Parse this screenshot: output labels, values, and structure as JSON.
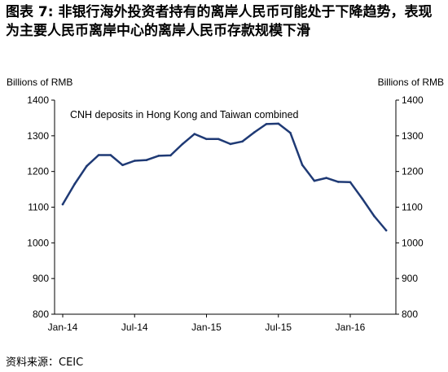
{
  "figure": {
    "title": "图表 7: 非银行海外投资者持有的离岸人民币可能处于下降趋势，表现为主要人民币离岸中心的离岸人民币存款规模下滑",
    "source": "资料来源：CEIC"
  },
  "chart_data": {
    "type": "line",
    "annotation": "CNH deposits in Hong Kong and Taiwan  combined",
    "ylabel_left": "Billions of RMB",
    "ylabel_right": "Billions of RMB",
    "ylim": [
      800,
      1400
    ],
    "yticks": [
      800,
      900,
      1000,
      1100,
      1200,
      1300,
      1400
    ],
    "xticks": [
      "Jan-14",
      "Jul-14",
      "Jan-15",
      "Jul-15",
      "Jan-16"
    ],
    "x": [
      "2014-01",
      "2014-02",
      "2014-03",
      "2014-04",
      "2014-05",
      "2014-06",
      "2014-07",
      "2014-08",
      "2014-09",
      "2014-10",
      "2014-11",
      "2014-12",
      "2015-01",
      "2015-02",
      "2015-03",
      "2015-04",
      "2015-05",
      "2015-06",
      "2015-07",
      "2015-08",
      "2015-09",
      "2015-10",
      "2015-11",
      "2015-12",
      "2016-01",
      "2016-02",
      "2016-03",
      "2016-04"
    ],
    "series": [
      {
        "values": [
          1108,
          1165,
          1215,
          1246,
          1246,
          1218,
          1230,
          1232,
          1244,
          1245,
          1277,
          1305,
          1291,
          1291,
          1277,
          1284,
          1310,
          1333,
          1334,
          1308,
          1218,
          1174,
          1182,
          1171,
          1170,
          1124,
          1075,
          1035
        ],
        "color": "#1f3a75"
      }
    ],
    "grid": false,
    "legend": "none"
  }
}
